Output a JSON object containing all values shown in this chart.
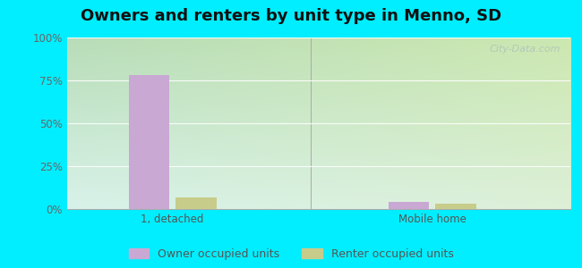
{
  "title": "Owners and renters by unit type in Menno, SD",
  "categories": [
    "1, detached",
    "Mobile home"
  ],
  "owner_values": [
    78,
    4
  ],
  "renter_values": [
    7,
    3
  ],
  "owner_color": "#c9a8d4",
  "renter_color": "#c8cc8a",
  "owner_label": "Owner occupied units",
  "renter_label": "Renter occupied units",
  "ylim": [
    0,
    100
  ],
  "yticks": [
    0,
    25,
    50,
    75,
    100
  ],
  "ytick_labels": [
    "0%",
    "25%",
    "50%",
    "75%",
    "100%"
  ],
  "outer_bg": "#00eeff",
  "bar_width": 0.25,
  "x_positions": [
    0.6,
    2.2
  ],
  "xlim": [
    -0.05,
    3.05
  ],
  "watermark": "City-Data.com",
  "grid_color": "#ccddcc",
  "title_fontsize": 13,
  "tick_fontsize": 8.5
}
